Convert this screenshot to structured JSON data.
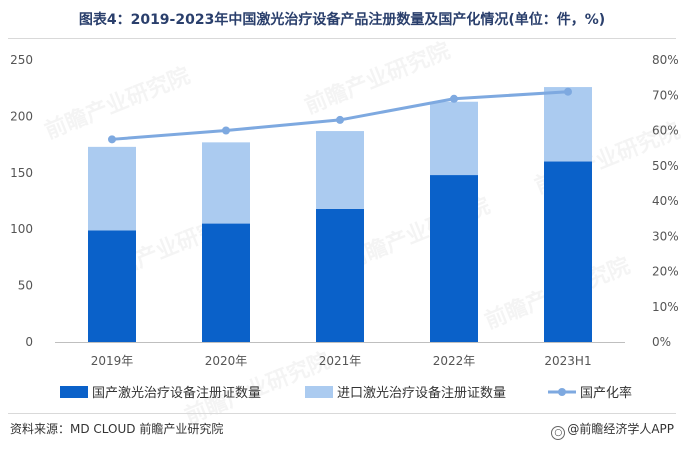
{
  "title": "图表4：2019-2023年中国激光治疗设备产品注册数量及国产化情况(单位：件，%)",
  "source": "资料来源：MD CLOUD 前瞻产业研究院",
  "credit": "@前瞻经济学人APP",
  "watermark": "前瞻产业研究院",
  "colors": {
    "domestic": "#0a61c9",
    "imported": "#abcbf0",
    "rate": "#7ea9e0",
    "axis_text": "#555555",
    "grid": "#e3e3e3"
  },
  "chart_data": {
    "type": "bar",
    "categories": [
      "2019年",
      "2020年",
      "2021年",
      "2022年",
      "2023H1"
    ],
    "series": [
      {
        "name": "国产激光治疗设备注册证数量",
        "type": "stacked-bar",
        "axis": "left",
        "values": [
          99,
          105,
          118,
          148,
          160
        ]
      },
      {
        "name": "进口激光治疗设备注册证数量",
        "type": "stacked-bar",
        "axis": "left",
        "values": [
          74,
          72,
          69,
          65,
          66
        ]
      },
      {
        "name": "国产化率",
        "type": "line",
        "axis": "right",
        "values": [
          57.5,
          60,
          63,
          69,
          71
        ]
      }
    ],
    "left_axis": {
      "ylim": [
        0,
        250
      ],
      "ticks": [
        "0",
        "50",
        "100",
        "150",
        "200",
        "250"
      ]
    },
    "right_axis": {
      "ylim": [
        0,
        80
      ],
      "ticks": [
        "0%",
        "10%",
        "20%",
        "30%",
        "40%",
        "50%",
        "60%",
        "70%",
        "80%"
      ]
    },
    "legend": [
      "国产激光治疗设备注册证数量",
      "进口激光治疗设备注册证数量",
      "国产化率"
    ],
    "legend_position": "bottom",
    "grid": false
  }
}
